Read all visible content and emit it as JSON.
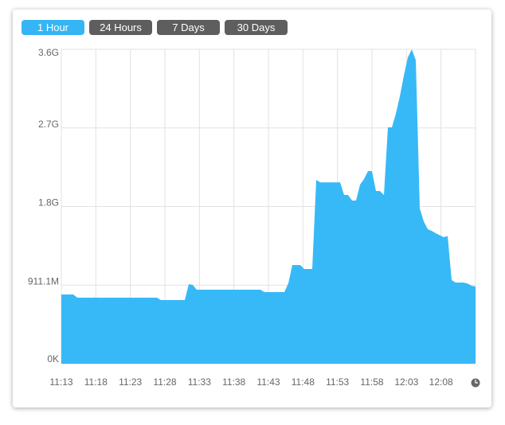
{
  "time_range_buttons": [
    "1 Hour",
    "24 Hours",
    "7 Days",
    "30 Days"
  ],
  "chart_data": {
    "type": "area",
    "color": "#38b9f7",
    "grid": true,
    "xticks": [
      "11:13",
      "11:18",
      "11:23",
      "11:28",
      "11:33",
      "11:38",
      "11:43",
      "11:48",
      "11:53",
      "11:58",
      "12:03",
      "12:08"
    ],
    "ylim": [
      0,
      3644.4
    ],
    "yticks": [
      {
        "value": 0,
        "label": "0K"
      },
      {
        "value": 911.1,
        "label": "911.1M"
      },
      {
        "value": 1822.2,
        "label": "1.8G"
      },
      {
        "value": 2733.3,
        "label": "2.7G"
      },
      {
        "value": 3644.4,
        "label": "3.6G"
      }
    ],
    "values": [
      803,
      803,
      803,
      803,
      766,
      766,
      766,
      766,
      766,
      766,
      766,
      766,
      766,
      766,
      766,
      766,
      766,
      766,
      766,
      766,
      766,
      766,
      766,
      766,
      766,
      738,
      738,
      738,
      738,
      738,
      738,
      738,
      923,
      913,
      858,
      858,
      858,
      858,
      858,
      858,
      858,
      858,
      858,
      858,
      858,
      858,
      858,
      858,
      858,
      858,
      858,
      830,
      830,
      830,
      830,
      830,
      830,
      932,
      1144,
      1144,
      1144,
      1098,
      1098,
      1098,
      2131,
      2103,
      2103,
      2103,
      2103,
      2103,
      2103,
      1956,
      1956,
      1891,
      1891,
      2076,
      2140,
      2233,
      2233,
      2002,
      2002,
      1956,
      2740,
      2740,
      2900,
      3100,
      3340,
      3552,
      3644,
      3520,
      1799,
      1650,
      1559,
      1540,
      1513,
      1490,
      1467,
      1480,
      970,
      941,
      941,
      941,
      930,
      904,
      895
    ]
  }
}
